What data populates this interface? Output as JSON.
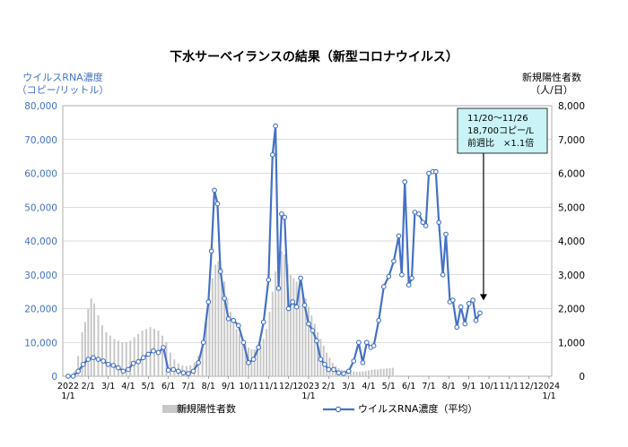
{
  "chart_data": {
    "type": "bar+line",
    "title": "下水サーベイランスの結果（新型コロナウイルス）",
    "left_axis": {
      "label_line1": "ウイルスRNA濃度",
      "label_line2": "（コピー/リットル）",
      "ylim": [
        0,
        80000
      ],
      "ticks": [
        "0",
        "10,000",
        "20,000",
        "30,000",
        "40,000",
        "50,000",
        "60,000",
        "70,000",
        "80,000"
      ],
      "color": "#4472c4"
    },
    "right_axis": {
      "label_line1": "新規陽性者数",
      "label_line2": "（人/日）",
      "ylim": [
        0,
        8000
      ],
      "ticks": [
        "0",
        "1,000",
        "2,000",
        "3,000",
        "4,000",
        "5,000",
        "6,000",
        "7,000",
        "8,000"
      ]
    },
    "x_ticks": [
      {
        "t": 0,
        "label": "2022",
        "sub": "1/1"
      },
      {
        "t": 1,
        "label": "2/1"
      },
      {
        "t": 2,
        "label": "3/1"
      },
      {
        "t": 3,
        "label": "4/1"
      },
      {
        "t": 4,
        "label": "5/1"
      },
      {
        "t": 5,
        "label": "6/1"
      },
      {
        "t": 6,
        "label": "7/1"
      },
      {
        "t": 7,
        "label": "8/1"
      },
      {
        "t": 8,
        "label": "9/1"
      },
      {
        "t": 9,
        "label": "10/1"
      },
      {
        "t": 10,
        "label": "11/1"
      },
      {
        "t": 11,
        "label": "12/1"
      },
      {
        "t": 12,
        "label": "2023",
        "sub": "1/1"
      },
      {
        "t": 13,
        "label": "2/1"
      },
      {
        "t": 14,
        "label": "3/1"
      },
      {
        "t": 15,
        "label": "4/1"
      },
      {
        "t": 16,
        "label": "5/1"
      },
      {
        "t": 17,
        "label": "6/1"
      },
      {
        "t": 18,
        "label": "7/1"
      },
      {
        "t": 19,
        "label": "8/1"
      },
      {
        "t": 20,
        "label": "9/1"
      },
      {
        "t": 21,
        "label": "10/1"
      },
      {
        "t": 22,
        "label": "11/1"
      },
      {
        "t": 23,
        "label": "12/1"
      },
      {
        "t": 24,
        "label": "2024",
        "sub": "1/1"
      }
    ],
    "series": [
      {
        "name": "新規陽性者数",
        "axis": "right",
        "kind": "bar",
        "color": "#c8c8c8",
        "points": [
          [
            0.1,
            30
          ],
          [
            0.3,
            150
          ],
          [
            0.5,
            600
          ],
          [
            0.7,
            1300
          ],
          [
            0.85,
            1600
          ],
          [
            1.0,
            2000
          ],
          [
            1.15,
            2300
          ],
          [
            1.3,
            2150
          ],
          [
            1.5,
            1800
          ],
          [
            1.7,
            1500
          ],
          [
            1.9,
            1300
          ],
          [
            2.1,
            1200
          ],
          [
            2.3,
            1100
          ],
          [
            2.5,
            1050
          ],
          [
            2.7,
            1000
          ],
          [
            2.9,
            1000
          ],
          [
            3.1,
            1050
          ],
          [
            3.3,
            1150
          ],
          [
            3.5,
            1250
          ],
          [
            3.7,
            1350
          ],
          [
            3.9,
            1400
          ],
          [
            4.1,
            1450
          ],
          [
            4.3,
            1400
          ],
          [
            4.5,
            1350
          ],
          [
            4.7,
            1200
          ],
          [
            4.9,
            1000
          ],
          [
            5.1,
            700
          ],
          [
            5.3,
            500
          ],
          [
            5.5,
            380
          ],
          [
            5.7,
            320
          ],
          [
            5.9,
            300
          ],
          [
            6.1,
            320
          ],
          [
            6.3,
            400
          ],
          [
            6.5,
            600
          ],
          [
            6.7,
            1000
          ],
          [
            6.9,
            1600
          ],
          [
            7.05,
            2300
          ],
          [
            7.2,
            2900
          ],
          [
            7.35,
            3300
          ],
          [
            7.5,
            3400
          ],
          [
            7.65,
            3200
          ],
          [
            7.8,
            2800
          ],
          [
            7.95,
            2300
          ],
          [
            8.1,
            1900
          ],
          [
            8.25,
            1600
          ],
          [
            8.4,
            1400
          ],
          [
            8.55,
            1250
          ],
          [
            8.7,
            1100
          ],
          [
            8.85,
            950
          ],
          [
            9.0,
            850
          ],
          [
            9.15,
            800
          ],
          [
            9.3,
            800
          ],
          [
            9.45,
            850
          ],
          [
            9.6,
            950
          ],
          [
            9.75,
            1100
          ],
          [
            9.9,
            1400
          ],
          [
            10.05,
            1900
          ],
          [
            10.2,
            2500
          ],
          [
            10.35,
            3100
          ],
          [
            10.5,
            3500
          ],
          [
            10.65,
            3700
          ],
          [
            10.8,
            3600
          ],
          [
            10.95,
            3300
          ],
          [
            11.1,
            3000
          ],
          [
            11.25,
            2900
          ],
          [
            11.4,
            2800
          ],
          [
            11.55,
            2650
          ],
          [
            11.7,
            2500
          ],
          [
            11.85,
            2300
          ],
          [
            12.0,
            2050
          ],
          [
            12.15,
            1800
          ],
          [
            12.3,
            1550
          ],
          [
            12.45,
            1300
          ],
          [
            12.6,
            1100
          ],
          [
            12.75,
            900
          ],
          [
            12.9,
            700
          ],
          [
            13.05,
            550
          ],
          [
            13.2,
            400
          ],
          [
            13.35,
            300
          ],
          [
            13.5,
            240
          ],
          [
            13.65,
            200
          ],
          [
            13.8,
            180
          ],
          [
            13.95,
            160
          ],
          [
            14.1,
            150
          ],
          [
            14.25,
            140
          ],
          [
            14.4,
            130
          ],
          [
            14.55,
            130
          ],
          [
            14.7,
            140
          ],
          [
            14.85,
            150
          ],
          [
            15.0,
            170
          ],
          [
            15.15,
            190
          ],
          [
            15.3,
            200
          ],
          [
            15.45,
            200
          ],
          [
            15.6,
            220
          ],
          [
            15.75,
            220
          ],
          [
            15.9,
            230
          ],
          [
            16.05,
            240
          ],
          [
            16.2,
            250
          ]
        ]
      },
      {
        "name": "ウイルスRNA濃度（平均）",
        "axis": "left",
        "kind": "line",
        "color": "#4472c4",
        "points": [
          [
            0.0,
            0
          ],
          [
            0.25,
            0
          ],
          [
            0.5,
            1500
          ],
          [
            0.75,
            3500
          ],
          [
            1.0,
            5000
          ],
          [
            1.25,
            5500
          ],
          [
            1.5,
            5000
          ],
          [
            1.75,
            4500
          ],
          [
            2.0,
            3500
          ],
          [
            2.25,
            3200
          ],
          [
            2.5,
            2500
          ],
          [
            2.75,
            1500
          ],
          [
            3.0,
            2000
          ],
          [
            3.25,
            3800
          ],
          [
            3.5,
            4300
          ],
          [
            3.75,
            5500
          ],
          [
            4.0,
            6500
          ],
          [
            4.25,
            7500
          ],
          [
            4.5,
            7000
          ],
          [
            4.75,
            8500
          ],
          [
            5.0,
            1800
          ],
          [
            5.25,
            2000
          ],
          [
            5.5,
            1500
          ],
          [
            5.75,
            1000
          ],
          [
            6.0,
            800
          ],
          [
            6.25,
            1500
          ],
          [
            6.5,
            4000
          ],
          [
            6.75,
            10000
          ],
          [
            7.0,
            22000
          ],
          [
            7.15,
            37000
          ],
          [
            7.3,
            55000
          ],
          [
            7.45,
            51000
          ],
          [
            7.6,
            31000
          ],
          [
            7.8,
            23000
          ],
          [
            8.0,
            17000
          ],
          [
            8.25,
            16500
          ],
          [
            8.5,
            15000
          ],
          [
            8.75,
            10000
          ],
          [
            9.0,
            4000
          ],
          [
            9.25,
            5000
          ],
          [
            9.5,
            8500
          ],
          [
            9.75,
            16000
          ],
          [
            10.0,
            28500
          ],
          [
            10.2,
            65500
          ],
          [
            10.35,
            74000
          ],
          [
            10.5,
            26000
          ],
          [
            10.65,
            48000
          ],
          [
            10.8,
            47000
          ],
          [
            11.0,
            20000
          ],
          [
            11.2,
            22000
          ],
          [
            11.4,
            20500
          ],
          [
            11.6,
            29000
          ],
          [
            11.8,
            21000
          ],
          [
            12.0,
            15500
          ],
          [
            12.2,
            13500
          ],
          [
            12.4,
            10500
          ],
          [
            12.6,
            5000
          ],
          [
            12.8,
            3500
          ],
          [
            13.0,
            2000
          ],
          [
            13.25,
            2000
          ],
          [
            13.5,
            1000
          ],
          [
            13.75,
            800
          ],
          [
            14.0,
            1500
          ],
          [
            14.25,
            4500
          ],
          [
            14.5,
            10000
          ],
          [
            14.7,
            4000
          ],
          [
            14.9,
            10000
          ],
          [
            15.1,
            8500
          ],
          [
            15.25,
            9000
          ],
          [
            15.5,
            16500
          ],
          [
            15.75,
            26500
          ],
          [
            16.0,
            29500
          ],
          [
            16.25,
            34000
          ],
          [
            16.5,
            41500
          ],
          [
            16.65,
            30000
          ],
          [
            16.8,
            57500
          ],
          [
            17.0,
            27000
          ],
          [
            17.15,
            29000
          ],
          [
            17.3,
            48500
          ],
          [
            17.5,
            48000
          ],
          [
            17.7,
            45500
          ],
          [
            17.85,
            44500
          ],
          [
            18.0,
            60000
          ],
          [
            18.2,
            60500
          ],
          [
            18.35,
            60500
          ],
          [
            18.5,
            45500
          ],
          [
            18.7,
            30000
          ],
          [
            18.85,
            42000
          ],
          [
            19.05,
            22000
          ],
          [
            19.2,
            22500
          ],
          [
            19.4,
            14500
          ],
          [
            19.6,
            20500
          ],
          [
            19.8,
            15500
          ],
          [
            20.0,
            21500
          ],
          [
            20.2,
            22500
          ],
          [
            20.35,
            16500
          ],
          [
            20.55,
            18700
          ]
        ]
      }
    ],
    "annotation": {
      "lines": [
        "11/20～11/26",
        "18,700コピー/L",
        "前週比　×1.1倍"
      ],
      "box_color": "#c9f3f6",
      "arrow_target_t": 20.55,
      "arrow_target_value": 18700
    },
    "legend": {
      "placement": "bottom",
      "bar_label": "新規陽性者数",
      "line_label": "ウイルスRNA濃度（平均）"
    }
  }
}
